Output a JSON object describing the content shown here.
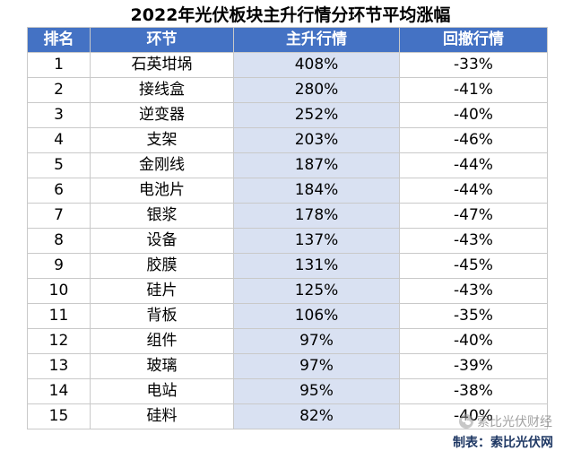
{
  "title": "2022年光伏板块主升行情分环节平均涨幅",
  "table": {
    "headers": [
      "排名",
      "环节",
      "主升行情",
      "回撤行情"
    ],
    "rows": [
      [
        "1",
        "石英坩埚",
        "408%",
        "-33%"
      ],
      [
        "2",
        "接线盒",
        "280%",
        "-41%"
      ],
      [
        "3",
        "逆变器",
        "252%",
        "-40%"
      ],
      [
        "4",
        "支架",
        "203%",
        "-46%"
      ],
      [
        "5",
        "金刚线",
        "187%",
        "-44%"
      ],
      [
        "6",
        "电池片",
        "184%",
        "-44%"
      ],
      [
        "7",
        "银浆",
        "178%",
        "-47%"
      ],
      [
        "8",
        "设备",
        "137%",
        "-43%"
      ],
      [
        "9",
        "胶膜",
        "131%",
        "-45%"
      ],
      [
        "10",
        "硅片",
        "125%",
        "-43%"
      ],
      [
        "11",
        "背板",
        "106%",
        "-35%"
      ],
      [
        "12",
        "组件",
        "97%",
        "-40%"
      ],
      [
        "13",
        "玻璃",
        "97%",
        "-39%"
      ],
      [
        "14",
        "电站",
        "95%",
        "-38%"
      ],
      [
        "15",
        "硅料",
        "82%",
        "-40%"
      ]
    ]
  },
  "watermark": {
    "icon": "wechat-icon",
    "text": "索比光伏财经"
  },
  "source": "制表：索比光伏网",
  "colors": {
    "header_bg": "#4472c4",
    "header_text": "#ffffff",
    "highlight_col": "#d9e1f2",
    "source_text": "#1f3864"
  }
}
